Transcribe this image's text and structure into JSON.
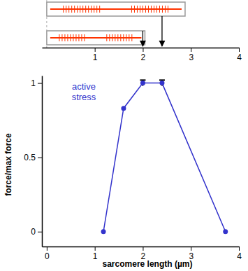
{
  "chart_data": {
    "type": "line",
    "xlabel": "sarcomere length (µm)",
    "ylabel": "force/max force",
    "annotation": "active stress",
    "x": [
      1.18,
      1.6,
      2.0,
      2.4,
      3.72
    ],
    "values": [
      0,
      0.83,
      1,
      1,
      0
    ],
    "errors": [
      null,
      null,
      0.02,
      0.02,
      null
    ],
    "color": "#3333cc",
    "marker": "circle",
    "xlim": [
      -0.1,
      4
    ],
    "ylim": [
      -0.1,
      1.05
    ],
    "xticks": [
      0,
      1,
      2,
      3,
      4
    ],
    "yticks": [
      0,
      0.5,
      1
    ],
    "x2ticks": [
      1,
      2,
      3,
      4
    ]
  }
}
